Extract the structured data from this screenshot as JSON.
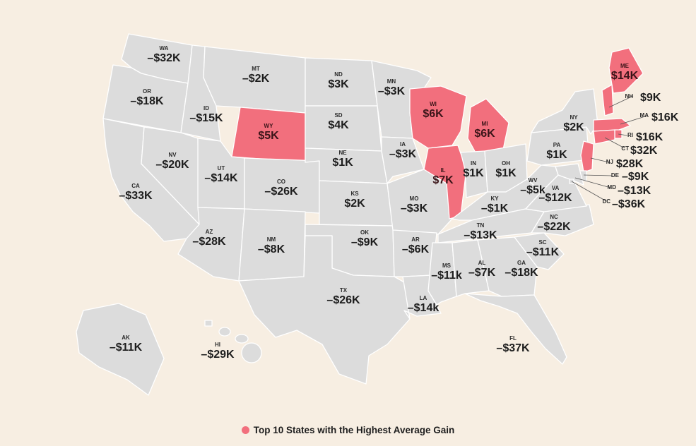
{
  "legend": {
    "label": "Top 10 States with the Highest Average Gain",
    "highlight_color": "#f26f7d"
  },
  "colors": {
    "background": "#f7eee2",
    "state_default": "#dcdcdc",
    "state_highlight": "#f26f7d"
  },
  "states": [
    {
      "abbr": "WA",
      "value": "–$32K",
      "highlight": false
    },
    {
      "abbr": "OR",
      "value": "–$18K",
      "highlight": false
    },
    {
      "abbr": "CA",
      "value": "–$33K",
      "highlight": false
    },
    {
      "abbr": "ID",
      "value": "–$15K",
      "highlight": false
    },
    {
      "abbr": "NV",
      "value": "–$20K",
      "highlight": false
    },
    {
      "abbr": "MT",
      "value": "–$2K",
      "highlight": false
    },
    {
      "abbr": "WY",
      "value": "$5K",
      "highlight": true
    },
    {
      "abbr": "UT",
      "value": "–$14K",
      "highlight": false
    },
    {
      "abbr": "AZ",
      "value": "–$28K",
      "highlight": false
    },
    {
      "abbr": "CO",
      "value": "–$26K",
      "highlight": false
    },
    {
      "abbr": "NM",
      "value": "–$8K",
      "highlight": false
    },
    {
      "abbr": "ND",
      "value": "$3K",
      "highlight": false
    },
    {
      "abbr": "SD",
      "value": "$4K",
      "highlight": false
    },
    {
      "abbr": "NE",
      "value": "$1K",
      "highlight": false
    },
    {
      "abbr": "KS",
      "value": "$2K",
      "highlight": false
    },
    {
      "abbr": "OK",
      "value": "–$9K",
      "highlight": false
    },
    {
      "abbr": "TX",
      "value": "–$26K",
      "highlight": false
    },
    {
      "abbr": "MN",
      "value": "–$3K",
      "highlight": false
    },
    {
      "abbr": "IA",
      "value": "–$3K",
      "highlight": false
    },
    {
      "abbr": "MO",
      "value": "–$3K",
      "highlight": false
    },
    {
      "abbr": "AR",
      "value": "–$6K",
      "highlight": false
    },
    {
      "abbr": "LA",
      "value": "–$14k",
      "highlight": false
    },
    {
      "abbr": "WI",
      "value": "$6K",
      "highlight": true
    },
    {
      "abbr": "IL",
      "value": "$7K",
      "highlight": true
    },
    {
      "abbr": "MI",
      "value": "$6K",
      "highlight": true
    },
    {
      "abbr": "IN",
      "value": "$1K",
      "highlight": false
    },
    {
      "abbr": "OH",
      "value": "$1K",
      "highlight": false
    },
    {
      "abbr": "KY",
      "value": "–$1K",
      "highlight": false
    },
    {
      "abbr": "TN",
      "value": "–$13K",
      "highlight": false
    },
    {
      "abbr": "MS",
      "value": "–$11k",
      "highlight": false
    },
    {
      "abbr": "AL",
      "value": "–$7K",
      "highlight": false
    },
    {
      "abbr": "GA",
      "value": "–$18K",
      "highlight": false
    },
    {
      "abbr": "FL",
      "value": "–$37K",
      "highlight": false
    },
    {
      "abbr": "SC",
      "value": "–$11K",
      "highlight": false
    },
    {
      "abbr": "NC",
      "value": "–$22K",
      "highlight": false
    },
    {
      "abbr": "VA",
      "value": "–$12K",
      "highlight": false
    },
    {
      "abbr": "WV",
      "value": "–$5k",
      "highlight": false
    },
    {
      "abbr": "PA",
      "value": "$1K",
      "highlight": false
    },
    {
      "abbr": "NY",
      "value": "$2K",
      "highlight": false
    },
    {
      "abbr": "ME",
      "value": "$14K",
      "highlight": true
    },
    {
      "abbr": "NH",
      "value": "$9K",
      "highlight": true
    },
    {
      "abbr": "MA",
      "value": "$16K",
      "highlight": true
    },
    {
      "abbr": "RI",
      "value": "$16K",
      "highlight": true
    },
    {
      "abbr": "CT",
      "value": "$32K",
      "highlight": true
    },
    {
      "abbr": "NJ",
      "value": "$28K",
      "highlight": true
    },
    {
      "abbr": "DE",
      "value": "–$9K",
      "highlight": false
    },
    {
      "abbr": "MD",
      "value": "–$13K",
      "highlight": false
    },
    {
      "abbr": "DC",
      "value": "–$36K",
      "highlight": false
    },
    {
      "abbr": "AK",
      "value": "–$11K",
      "highlight": false
    },
    {
      "abbr": "HI",
      "value": "–$29K",
      "highlight": false
    }
  ]
}
